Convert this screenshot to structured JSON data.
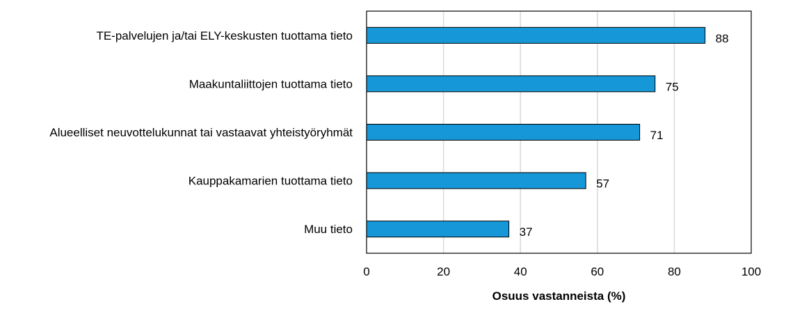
{
  "chart_data": {
    "type": "bar",
    "orientation": "horizontal",
    "categories": [
      "TE-palvelujen ja/tai ELY-keskusten tuottama tieto",
      "Maakuntaliittojen tuottama tieto",
      "Alueelliset neuvottelukunnat tai vastaavat yhteistyöryhmät",
      "Kauppakamarien tuottama tieto",
      "Muu tieto"
    ],
    "values": [
      88,
      75,
      71,
      57,
      37
    ],
    "value_labels": [
      "88",
      "75",
      "71",
      "57",
      "37"
    ],
    "xlabel": "Osuus vastanneista (%)",
    "xlim": [
      0,
      100
    ],
    "xticks": [
      0,
      20,
      40,
      60,
      80,
      100
    ],
    "xtick_labels": [
      "0",
      "20",
      "40",
      "60",
      "80",
      "100"
    ],
    "grid": "vertical",
    "legend": "none",
    "bar_color": "#1597d8",
    "bar_edge_color": "#000000",
    "grid_color": "#d9d9d9",
    "frame_color": "#000000"
  }
}
